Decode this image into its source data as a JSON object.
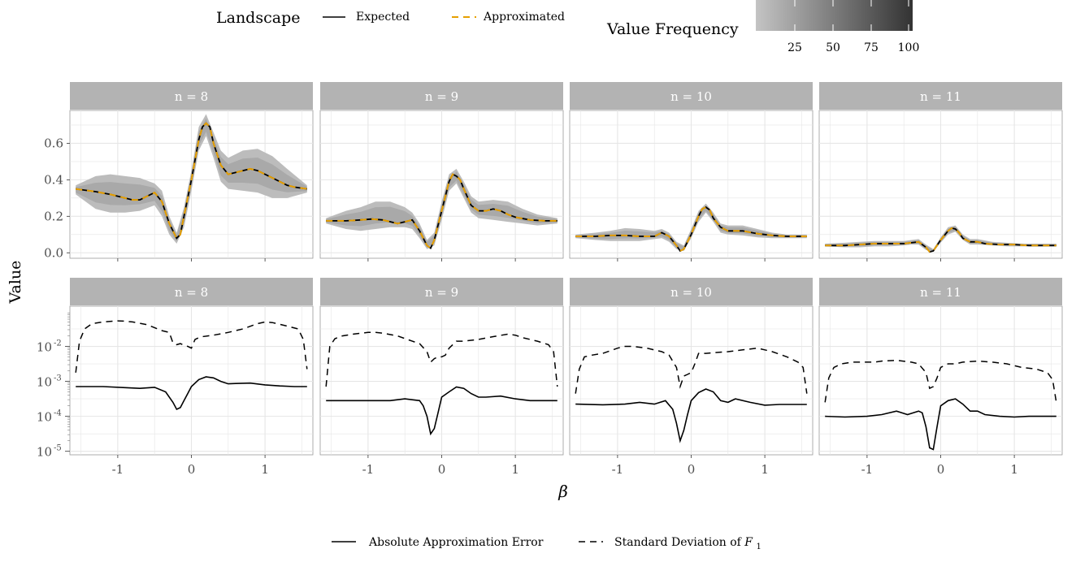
{
  "chart_data": {
    "type": "line",
    "x_label": "β",
    "y_label": "Value",
    "colors": {
      "panel_bg": "#ffffff",
      "grid": "#e6e6e6",
      "strip_bg": "#b3b3b3",
      "strip_text": "#ffffff",
      "axis_text": "#4d4d4d",
      "expected": "#000000",
      "approximated": "#e69f00",
      "frequency_low": "#c4c4c4",
      "frequency_high": "#333333"
    },
    "legend_top": {
      "title": "Landscape",
      "expected_label": "Expected",
      "approximated_label": "Approximated",
      "frequency_title": "Value Frequency",
      "frequency_ticks": [
        "25",
        "50",
        "75",
        "100"
      ]
    },
    "legend_bottom": {
      "solid_label": "Absolute Approximation Error",
      "dashed_label_text": "Standard Deviation of ",
      "dashed_label_var": "F",
      "dashed_label_sub": "1"
    },
    "x_axis": {
      "range": [
        -1.65,
        1.65
      ],
      "ticks": [
        -1,
        0,
        1
      ],
      "tick_labels": [
        "-1",
        "0",
        "1"
      ]
    },
    "top_row": {
      "y_range": [
        -0.03,
        0.78
      ],
      "y_ticks": [
        0.0,
        0.2,
        0.4,
        0.6
      ],
      "y_tick_labels": [
        "0.0",
        "0.2",
        "0.4",
        "0.6"
      ]
    },
    "bottom_row": {
      "scale": "log10",
      "y_range_exponent": [
        -5.1,
        -0.85
      ],
      "y_ticks_exponent": [
        -5,
        -4,
        -3,
        -2
      ],
      "y_tick_labels": [
        "10",
        "10",
        "10",
        "10"
      ],
      "y_tick_sups": [
        "-5",
        "-4",
        "-3",
        "-2"
      ]
    },
    "facets": [
      {
        "label": "n = 8",
        "expected": {
          "x": [
            -1.57,
            -1.3,
            -1.1,
            -0.95,
            -0.8,
            -0.7,
            -0.6,
            -0.5,
            -0.4,
            -0.3,
            -0.2,
            -0.15,
            -0.1,
            0.0,
            0.1,
            0.15,
            0.2,
            0.25,
            0.3,
            0.4,
            0.5,
            0.6,
            0.7,
            0.8,
            0.9,
            1.0,
            1.1,
            1.2,
            1.3,
            1.4,
            1.57
          ],
          "y": [
            0.35,
            0.335,
            0.32,
            0.305,
            0.29,
            0.29,
            0.31,
            0.33,
            0.28,
            0.16,
            0.08,
            0.1,
            0.2,
            0.4,
            0.62,
            0.69,
            0.71,
            0.69,
            0.6,
            0.48,
            0.43,
            0.44,
            0.45,
            0.46,
            0.45,
            0.43,
            0.41,
            0.39,
            0.37,
            0.36,
            0.35
          ]
        },
        "band": {
          "x": [
            -1.57,
            -1.3,
            -1.1,
            -0.9,
            -0.7,
            -0.5,
            -0.4,
            -0.3,
            -0.2,
            -0.1,
            0.0,
            0.1,
            0.2,
            0.3,
            0.4,
            0.5,
            0.7,
            0.9,
            1.1,
            1.3,
            1.57
          ],
          "low": [
            0.32,
            0.24,
            0.22,
            0.22,
            0.23,
            0.26,
            0.2,
            0.1,
            0.05,
            0.14,
            0.34,
            0.56,
            0.64,
            0.52,
            0.39,
            0.35,
            0.34,
            0.33,
            0.3,
            0.3,
            0.33
          ],
          "high": [
            0.37,
            0.42,
            0.43,
            0.42,
            0.41,
            0.38,
            0.34,
            0.2,
            0.11,
            0.25,
            0.45,
            0.69,
            0.76,
            0.66,
            0.56,
            0.52,
            0.56,
            0.57,
            0.53,
            0.46,
            0.37
          ]
        },
        "error": {
          "x": [
            -1.57,
            -1.2,
            -0.9,
            -0.7,
            -0.5,
            -0.35,
            -0.25,
            -0.2,
            -0.15,
            -0.1,
            -0.05,
            0.0,
            0.1,
            0.2,
            0.3,
            0.4,
            0.5,
            0.6,
            0.8,
            1.0,
            1.2,
            1.4,
            1.57
          ],
          "exp": [
            -3.15,
            -3.15,
            -3.18,
            -3.2,
            -3.17,
            -3.3,
            -3.6,
            -3.8,
            -3.75,
            -3.55,
            -3.35,
            -3.15,
            -2.95,
            -2.87,
            -2.9,
            -3.0,
            -3.07,
            -3.06,
            -3.05,
            -3.1,
            -3.13,
            -3.15,
            -3.15
          ]
        },
        "sd": {
          "x": [
            -1.57,
            -1.52,
            -1.45,
            -1.35,
            -1.2,
            -1.0,
            -0.9,
            -0.8,
            -0.6,
            -0.4,
            -0.3,
            -0.25,
            -0.2,
            -0.15,
            -0.1,
            -0.05,
            0.0,
            0.05,
            0.1,
            0.15,
            0.3,
            0.5,
            0.7,
            0.9,
            1.0,
            1.1,
            1.3,
            1.45,
            1.52,
            1.57
          ],
          "exp": [
            -2.75,
            -1.85,
            -1.5,
            -1.35,
            -1.3,
            -1.27,
            -1.28,
            -1.3,
            -1.38,
            -1.55,
            -1.6,
            -1.9,
            -1.95,
            -1.92,
            -1.97,
            -2.0,
            -2.05,
            -1.8,
            -1.75,
            -1.72,
            -1.68,
            -1.6,
            -1.5,
            -1.35,
            -1.3,
            -1.32,
            -1.42,
            -1.5,
            -1.8,
            -2.65
          ]
        }
      },
      {
        "label": "n = 9",
        "expected": {
          "x": [
            -1.57,
            -1.3,
            -1.1,
            -0.95,
            -0.8,
            -0.6,
            -0.5,
            -0.4,
            -0.3,
            -0.2,
            -0.15,
            -0.1,
            0.0,
            0.1,
            0.15,
            0.2,
            0.25,
            0.3,
            0.4,
            0.5,
            0.6,
            0.7,
            0.8,
            0.9,
            1.0,
            1.2,
            1.4,
            1.57
          ],
          "y": [
            0.175,
            0.175,
            0.18,
            0.185,
            0.18,
            0.16,
            0.17,
            0.18,
            0.12,
            0.04,
            0.025,
            0.07,
            0.23,
            0.39,
            0.43,
            0.42,
            0.4,
            0.35,
            0.26,
            0.23,
            0.23,
            0.24,
            0.23,
            0.21,
            0.195,
            0.18,
            0.175,
            0.175
          ]
        },
        "band": {
          "x": [
            -1.57,
            -1.3,
            -1.1,
            -0.9,
            -0.7,
            -0.5,
            -0.4,
            -0.3,
            -0.2,
            -0.1,
            0.0,
            0.1,
            0.2,
            0.3,
            0.4,
            0.5,
            0.7,
            0.9,
            1.1,
            1.3,
            1.57
          ],
          "low": [
            0.16,
            0.13,
            0.12,
            0.13,
            0.14,
            0.14,
            0.13,
            0.08,
            0.02,
            0.04,
            0.18,
            0.34,
            0.38,
            0.3,
            0.22,
            0.19,
            0.18,
            0.17,
            0.16,
            0.15,
            0.16
          ],
          "high": [
            0.19,
            0.23,
            0.25,
            0.28,
            0.28,
            0.25,
            0.22,
            0.16,
            0.07,
            0.11,
            0.28,
            0.43,
            0.46,
            0.39,
            0.31,
            0.28,
            0.29,
            0.28,
            0.24,
            0.21,
            0.19
          ]
        },
        "error": {
          "x": [
            -1.57,
            -1.2,
            -0.9,
            -0.7,
            -0.5,
            -0.3,
            -0.25,
            -0.2,
            -0.15,
            -0.1,
            -0.05,
            0.0,
            0.1,
            0.2,
            0.3,
            0.4,
            0.5,
            0.6,
            0.8,
            1.0,
            1.2,
            1.4,
            1.57
          ],
          "exp": [
            -3.55,
            -3.55,
            -3.55,
            -3.55,
            -3.5,
            -3.55,
            -3.7,
            -4.0,
            -4.5,
            -4.35,
            -3.9,
            -3.45,
            -3.3,
            -3.16,
            -3.2,
            -3.35,
            -3.45,
            -3.45,
            -3.42,
            -3.5,
            -3.55,
            -3.55,
            -3.55
          ]
        },
        "sd": {
          "x": [
            -1.57,
            -1.52,
            -1.45,
            -1.35,
            -1.2,
            -1.0,
            -0.9,
            -0.8,
            -0.6,
            -0.4,
            -0.3,
            -0.2,
            -0.15,
            -0.1,
            -0.05,
            0.0,
            0.05,
            0.1,
            0.2,
            0.3,
            0.5,
            0.7,
            0.9,
            1.0,
            1.1,
            1.3,
            1.45,
            1.52,
            1.57
          ],
          "exp": [
            -3.15,
            -2.0,
            -1.78,
            -1.7,
            -1.65,
            -1.6,
            -1.6,
            -1.62,
            -1.7,
            -1.85,
            -1.92,
            -2.15,
            -2.45,
            -2.35,
            -2.3,
            -2.3,
            -2.25,
            -2.05,
            -1.85,
            -1.85,
            -1.8,
            -1.72,
            -1.65,
            -1.68,
            -1.75,
            -1.85,
            -1.95,
            -2.15,
            -3.15
          ]
        }
      },
      {
        "label": "n = 10",
        "expected": {
          "x": [
            -1.57,
            -1.3,
            -1.1,
            -0.9,
            -0.7,
            -0.5,
            -0.4,
            -0.3,
            -0.2,
            -0.15,
            -0.1,
            0.0,
            0.1,
            0.15,
            0.2,
            0.25,
            0.3,
            0.4,
            0.5,
            0.6,
            0.7,
            0.9,
            1.1,
            1.3,
            1.57
          ],
          "y": [
            0.09,
            0.09,
            0.095,
            0.095,
            0.09,
            0.09,
            0.11,
            0.09,
            0.04,
            0.01,
            0.02,
            0.1,
            0.2,
            0.24,
            0.25,
            0.235,
            0.19,
            0.14,
            0.12,
            0.12,
            0.12,
            0.105,
            0.095,
            0.09,
            0.09
          ]
        },
        "band": {
          "x": [
            -1.57,
            -1.3,
            -1.1,
            -0.9,
            -0.7,
            -0.5,
            -0.4,
            -0.3,
            -0.2,
            -0.1,
            0.0,
            0.1,
            0.2,
            0.3,
            0.4,
            0.5,
            0.7,
            0.9,
            1.1,
            1.3,
            1.57
          ],
          "low": [
            0.08,
            0.07,
            0.065,
            0.065,
            0.065,
            0.075,
            0.08,
            0.06,
            0.02,
            0.01,
            0.08,
            0.17,
            0.22,
            0.17,
            0.11,
            0.1,
            0.095,
            0.085,
            0.08,
            0.08,
            0.08
          ],
          "high": [
            0.1,
            0.11,
            0.12,
            0.135,
            0.13,
            0.12,
            0.13,
            0.11,
            0.06,
            0.04,
            0.13,
            0.23,
            0.27,
            0.22,
            0.16,
            0.15,
            0.15,
            0.13,
            0.11,
            0.1,
            0.1
          ]
        },
        "error": {
          "x": [
            -1.57,
            -1.2,
            -0.9,
            -0.7,
            -0.5,
            -0.35,
            -0.25,
            -0.2,
            -0.15,
            -0.1,
            -0.05,
            0.0,
            0.1,
            0.2,
            0.3,
            0.4,
            0.5,
            0.6,
            0.8,
            1.0,
            1.2,
            1.4,
            1.57
          ],
          "exp": [
            -3.65,
            -3.67,
            -3.65,
            -3.6,
            -3.65,
            -3.55,
            -3.8,
            -4.2,
            -4.7,
            -4.4,
            -3.95,
            -3.55,
            -3.32,
            -3.22,
            -3.3,
            -3.55,
            -3.6,
            -3.5,
            -3.6,
            -3.68,
            -3.66,
            -3.66,
            -3.66
          ]
        },
        "sd": {
          "x": [
            -1.57,
            -1.52,
            -1.45,
            -1.35,
            -1.2,
            -1.0,
            -0.9,
            -0.8,
            -0.6,
            -0.4,
            -0.3,
            -0.2,
            -0.15,
            -0.1,
            -0.05,
            0.0,
            0.05,
            0.1,
            0.2,
            0.3,
            0.5,
            0.7,
            0.9,
            1.0,
            1.1,
            1.3,
            1.45,
            1.52,
            1.57
          ],
          "exp": [
            -3.35,
            -2.65,
            -2.3,
            -2.25,
            -2.2,
            -2.05,
            -2.0,
            -2.0,
            -2.05,
            -2.15,
            -2.25,
            -2.6,
            -3.15,
            -2.85,
            -2.8,
            -2.75,
            -2.5,
            -2.2,
            -2.2,
            -2.18,
            -2.15,
            -2.1,
            -2.05,
            -2.1,
            -2.15,
            -2.3,
            -2.45,
            -2.6,
            -3.35
          ]
        }
      },
      {
        "label": "n = 11",
        "expected": {
          "x": [
            -1.57,
            -1.3,
            -1.1,
            -0.9,
            -0.7,
            -0.5,
            -0.4,
            -0.3,
            -0.2,
            -0.15,
            -0.1,
            0.0,
            0.1,
            0.15,
            0.2,
            0.25,
            0.3,
            0.4,
            0.5,
            0.6,
            0.8,
            1.0,
            1.2,
            1.4,
            1.57
          ],
          "y": [
            0.04,
            0.04,
            0.045,
            0.05,
            0.05,
            0.05,
            0.055,
            0.06,
            0.03,
            0.005,
            0.01,
            0.07,
            0.12,
            0.135,
            0.13,
            0.11,
            0.08,
            0.06,
            0.06,
            0.05,
            0.045,
            0.045,
            0.04,
            0.04,
            0.04
          ]
        },
        "band": {
          "x": [
            -1.57,
            -1.3,
            -1.1,
            -0.9,
            -0.7,
            -0.5,
            -0.4,
            -0.3,
            -0.2,
            -0.1,
            0.0,
            0.1,
            0.2,
            0.3,
            0.4,
            0.5,
            0.7,
            0.9,
            1.1,
            1.3,
            1.57
          ],
          "low": [
            0.035,
            0.03,
            0.03,
            0.035,
            0.035,
            0.04,
            0.045,
            0.045,
            0.015,
            0.005,
            0.055,
            0.1,
            0.115,
            0.07,
            0.045,
            0.045,
            0.04,
            0.035,
            0.035,
            0.035,
            0.035
          ],
          "high": [
            0.05,
            0.055,
            0.06,
            0.065,
            0.065,
            0.065,
            0.07,
            0.075,
            0.045,
            0.02,
            0.085,
            0.14,
            0.15,
            0.1,
            0.075,
            0.075,
            0.06,
            0.055,
            0.05,
            0.05,
            0.05
          ]
        },
        "error": {
          "x": [
            -1.57,
            -1.3,
            -1.0,
            -0.8,
            -0.6,
            -0.45,
            -0.3,
            -0.25,
            -0.2,
            -0.15,
            -0.1,
            -0.05,
            0.0,
            0.1,
            0.2,
            0.3,
            0.4,
            0.5,
            0.6,
            0.8,
            1.0,
            1.2,
            1.4,
            1.57
          ],
          "exp": [
            -4.0,
            -4.02,
            -4.0,
            -3.95,
            -3.85,
            -3.95,
            -3.85,
            -3.9,
            -4.3,
            -4.9,
            -4.95,
            -4.3,
            -3.7,
            -3.55,
            -3.5,
            -3.65,
            -3.85,
            -3.85,
            -3.95,
            -4.0,
            -4.02,
            -4.0,
            -4.0,
            -4.0
          ]
        },
        "sd": {
          "x": [
            -1.57,
            -1.52,
            -1.45,
            -1.35,
            -1.2,
            -1.0,
            -0.9,
            -0.8,
            -0.6,
            -0.4,
            -0.3,
            -0.2,
            -0.15,
            -0.1,
            -0.05,
            0.0,
            0.05,
            0.1,
            0.2,
            0.3,
            0.5,
            0.7,
            0.9,
            1.0,
            1.1,
            1.3,
            1.45,
            1.52,
            1.57
          ],
          "exp": [
            -3.6,
            -2.9,
            -2.6,
            -2.5,
            -2.45,
            -2.45,
            -2.45,
            -2.42,
            -2.4,
            -2.45,
            -2.5,
            -2.75,
            -3.2,
            -3.15,
            -2.9,
            -2.6,
            -2.55,
            -2.5,
            -2.5,
            -2.45,
            -2.42,
            -2.45,
            -2.5,
            -2.55,
            -2.6,
            -2.65,
            -2.75,
            -2.95,
            -3.6
          ]
        }
      }
    ]
  }
}
